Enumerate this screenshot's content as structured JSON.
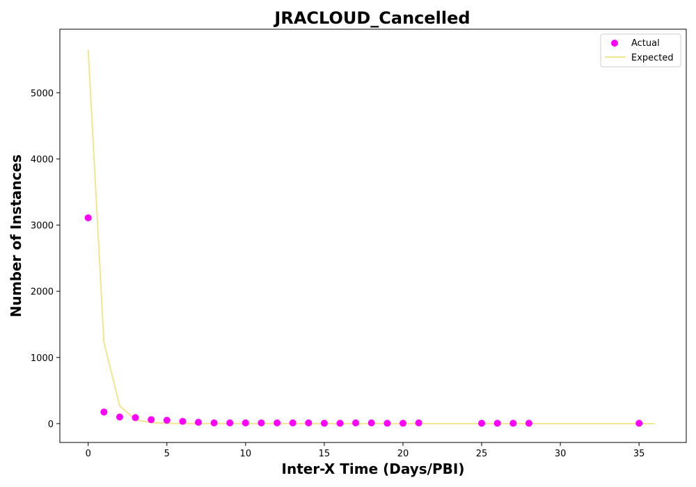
{
  "chart_data": {
    "type": "scatter",
    "title": "JRACLOUD_Cancelled",
    "xlabel": "Inter-X Time (Days/PBI)",
    "ylabel": "Number of Instances",
    "xlim": [
      -1.8,
      38
    ],
    "ylim": [
      -285,
      5960
    ],
    "x_ticks": [
      0,
      5,
      10,
      15,
      20,
      25,
      30,
      35
    ],
    "y_ticks": [
      0,
      1000,
      2000,
      3000,
      4000,
      5000
    ],
    "grid": false,
    "legend_position": "top-right",
    "series": [
      {
        "name": "Actual",
        "kind": "scatter",
        "color": "#ff00ff",
        "x": [
          0,
          1,
          2,
          3,
          4,
          5,
          6,
          7,
          8,
          9,
          10,
          11,
          12,
          13,
          14,
          15,
          16,
          17,
          18,
          19,
          20,
          21,
          25,
          26,
          27,
          28,
          35
        ],
        "y": [
          3110,
          175,
          100,
          90,
          60,
          50,
          35,
          20,
          10,
          10,
          10,
          10,
          10,
          10,
          10,
          5,
          5,
          10,
          10,
          5,
          5,
          10,
          5,
          5,
          5,
          5,
          5
        ]
      },
      {
        "name": "Expected",
        "kind": "line",
        "color": "#f0e68c",
        "x": [
          0,
          1,
          2,
          3,
          4,
          5,
          6,
          7,
          8,
          9,
          10,
          11,
          12,
          13,
          14,
          15,
          16,
          17,
          18,
          19,
          20,
          21,
          22,
          23,
          24,
          25,
          26,
          27,
          28,
          29,
          30,
          31,
          32,
          33,
          34,
          35,
          36
        ],
        "y": [
          5650,
          1230,
          270,
          60,
          15,
          5,
          2,
          1,
          0,
          0,
          0,
          0,
          0,
          0,
          0,
          0,
          0,
          0,
          0,
          0,
          0,
          0,
          0,
          0,
          0,
          0,
          0,
          0,
          0,
          0,
          0,
          0,
          0,
          0,
          0,
          0,
          0
        ]
      }
    ]
  }
}
